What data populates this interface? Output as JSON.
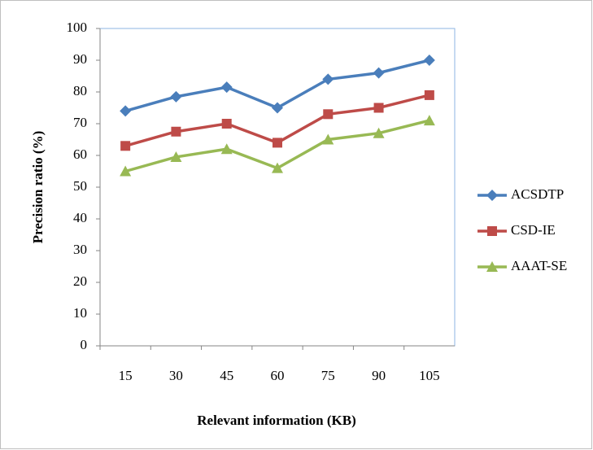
{
  "chart_data": {
    "type": "line",
    "x_label": "Relevant information (KB)",
    "y_label": "Precision ratio (%)",
    "categories": [
      "15",
      "30",
      "45",
      "60",
      "75",
      "90",
      "105"
    ],
    "series": [
      {
        "name": "ACSDTP",
        "color": "#4a7ebb",
        "marker": "diamond",
        "values": [
          74,
          78.5,
          81.5,
          75,
          84,
          86,
          90
        ]
      },
      {
        "name": "CSD-IE",
        "color": "#be4b48",
        "marker": "square",
        "values": [
          63,
          67.5,
          70,
          64,
          73,
          75,
          79
        ]
      },
      {
        "name": "AAAT-SE",
        "color": "#98b954",
        "marker": "triangle",
        "values": [
          55,
          59.5,
          62,
          56,
          65,
          67,
          71
        ]
      }
    ],
    "ylim": [
      0,
      100
    ],
    "yticks": [
      0,
      10,
      20,
      30,
      40,
      50,
      60,
      70,
      80,
      90,
      100
    ],
    "grid": false,
    "legend": "right"
  }
}
